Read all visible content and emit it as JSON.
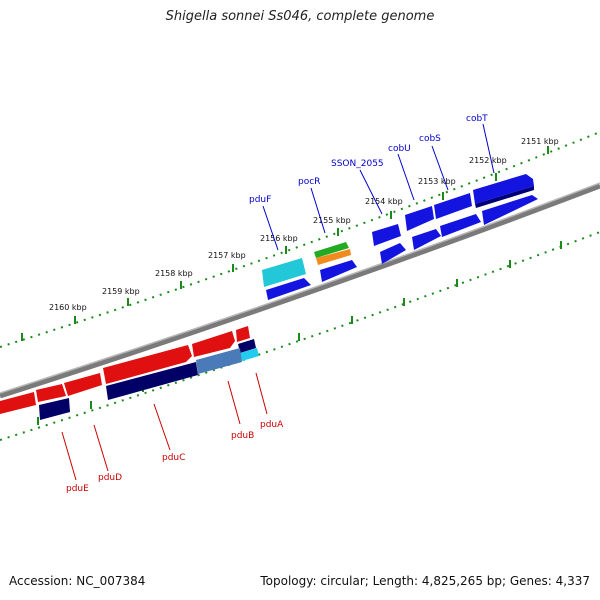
{
  "title": "Shigella sonnei Ss046, complete genome",
  "footer": {
    "accession": "Accession: NC_007384",
    "summary": "Topology: circular; Length: 4,825,265 bp; Genes: 4,337"
  },
  "colors": {
    "forward_label": "#0000cc",
    "reverse_label": "#cc0000",
    "tick": "#1a8a1a",
    "backbone": "#808080"
  },
  "kbp_labels": [
    "2151 kbp",
    "2152 kbp",
    "2153 kbp",
    "2154 kbp",
    "2155 kbp",
    "2156 kbp",
    "2157 kbp",
    "2158 kbp",
    "2159 kbp",
    "2160 kbp"
  ],
  "forward_genes": [
    "cobT",
    "cobS",
    "cobU",
    "SSON_2055",
    "pocR",
    "pduF"
  ],
  "reverse_genes": [
    "pduA",
    "pduB",
    "pduC",
    "pduD",
    "pduE"
  ]
}
